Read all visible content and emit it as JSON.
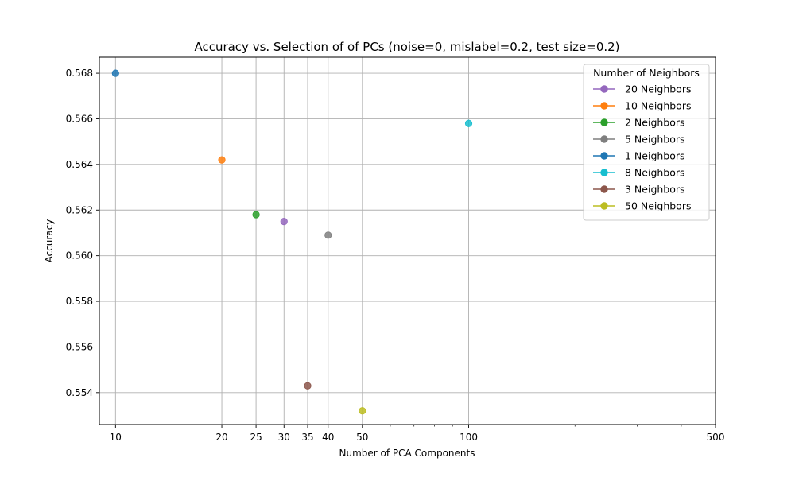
{
  "chart_data": {
    "type": "scatter",
    "title": "Accuracy vs. Selection of of PCs (noise=0, mislabel=0.2, test size=0.2)",
    "xlabel": "Number of PCA Components",
    "ylabel": "Accuracy",
    "xscale": "log",
    "xlim": [
      9,
      500
    ],
    "ylim": [
      0.5526,
      0.5687
    ],
    "xticks": [
      10,
      20,
      25,
      30,
      35,
      40,
      50,
      100,
      500
    ],
    "yticks": [
      0.554,
      0.556,
      0.558,
      0.56,
      0.562,
      0.564,
      0.566,
      0.568
    ],
    "grid": true,
    "legend": {
      "title": "Number of Neighbors",
      "position": "top-right"
    },
    "series": [
      {
        "name": "20 Neighbors",
        "color": "#9467bd",
        "points": [
          [
            30,
            0.5615
          ]
        ]
      },
      {
        "name": "10 Neighbors",
        "color": "#ff7f0e",
        "points": [
          [
            20,
            0.5642
          ]
        ]
      },
      {
        "name": "2 Neighbors",
        "color": "#2ca02c",
        "points": [
          [
            25,
            0.5618
          ]
        ]
      },
      {
        "name": "5 Neighbors",
        "color": "#7f7f7f",
        "points": [
          [
            40,
            0.5609
          ]
        ]
      },
      {
        "name": "1 Neighbors",
        "color": "#1f77b4",
        "points": [
          [
            10,
            0.568
          ]
        ]
      },
      {
        "name": "8 Neighbors",
        "color": "#17becf",
        "points": [
          [
            100,
            0.5658
          ]
        ]
      },
      {
        "name": "3 Neighbors",
        "color": "#8c564b",
        "points": [
          [
            35,
            0.5543
          ]
        ]
      },
      {
        "name": "50 Neighbors",
        "color": "#bcbd22",
        "points": [
          [
            50,
            0.5532
          ]
        ]
      }
    ]
  }
}
